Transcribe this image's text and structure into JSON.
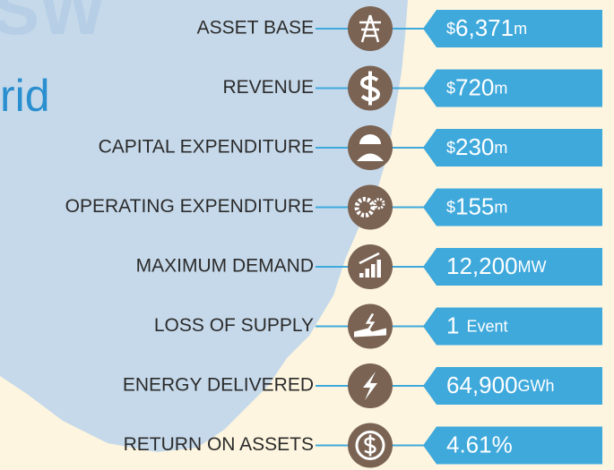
{
  "background_text": [
    "SW",
    "rid"
  ],
  "items": [
    {
      "label": "ASSET BASE",
      "prefix": "$",
      "value": "6,371",
      "unit": "m"
    },
    {
      "label": "REVENUE",
      "prefix": "$",
      "value": "720",
      "unit": "m"
    },
    {
      "label": "CAPITAL EXPENDITURE",
      "prefix": "$",
      "value": "230",
      "unit": "m"
    },
    {
      "label": "OPERATING EXPENDITURE",
      "prefix": "$",
      "value": "155",
      "unit": "m"
    },
    {
      "label": "MAXIMUM DEMAND",
      "value": "12,200",
      "unit": "MW"
    },
    {
      "label": "LOSS OF SUPPLY",
      "value": "1",
      "unit": "Event"
    },
    {
      "label": "ENERGY DELIVERED",
      "value": "64,900",
      "unit": "GWh"
    },
    {
      "label": "RETURN ON ASSETS",
      "value": "4.61%"
    }
  ]
}
